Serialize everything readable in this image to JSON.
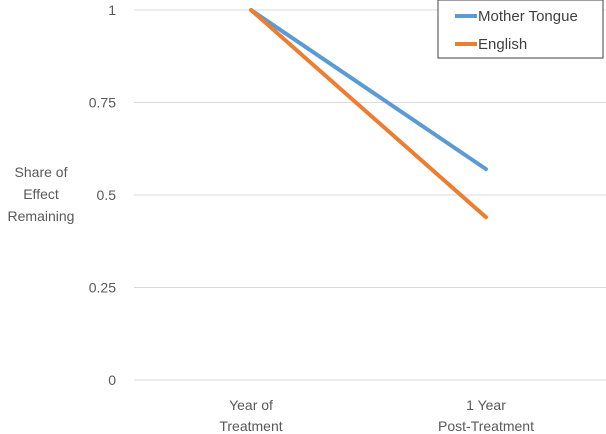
{
  "chart_data": {
    "type": "line",
    "title": "",
    "xlabel": "",
    "ylabel": [
      "Share of",
      "Effect",
      "Remaining"
    ],
    "categories": [
      [
        "Year of",
        "Treatment"
      ],
      [
        "1 Year",
        "Post-Treatment"
      ]
    ],
    "ylim": [
      0,
      1
    ],
    "yticks": [
      "0",
      "0.25",
      "0.5",
      "0.75",
      "1"
    ],
    "ytick_values": [
      0,
      0.25,
      0.5,
      0.75,
      1
    ],
    "grid": true,
    "legend": "top-right",
    "series": [
      {
        "name": "Mother Tongue",
        "color": "#5B9BD5",
        "values": [
          1,
          0.57
        ]
      },
      {
        "name": "English",
        "color": "#ED7D31",
        "values": [
          1,
          0.44
        ]
      }
    ]
  }
}
